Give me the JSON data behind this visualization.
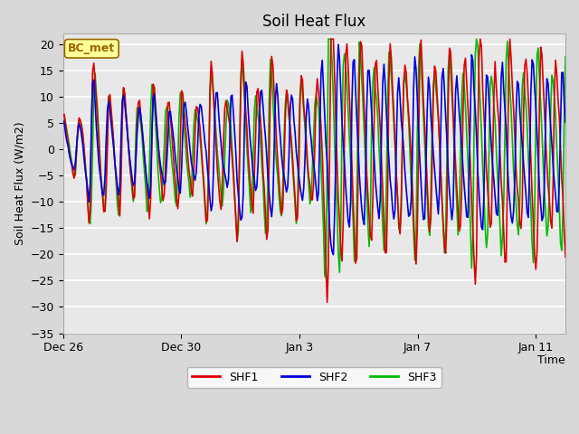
{
  "title": "Soil Heat Flux",
  "xlabel": "Time",
  "ylabel": "Soil Heat Flux (W/m2)",
  "ylim": [
    -35,
    22
  ],
  "yticks": [
    -35,
    -30,
    -25,
    -20,
    -15,
    -10,
    -5,
    0,
    5,
    10,
    15,
    20
  ],
  "bg_color": "#d8d8d8",
  "plot_bg_color": "#d8d8d8",
  "grid_color": "#c0c0c0",
  "line_colors": {
    "SHF1": "#dd0000",
    "SHF2": "#0000dd",
    "SHF3": "#00bb00"
  },
  "line_width": 1.2,
  "legend_label": "BC_met",
  "legend_bg": "#ffff99",
  "legend_border": "#996600",
  "xtick_labels": [
    "Dec 26",
    "Dec 30",
    "Jan 3",
    "Jan 7",
    "Jan 11"
  ],
  "xtick_positions": [
    0,
    4,
    8,
    12,
    16
  ]
}
